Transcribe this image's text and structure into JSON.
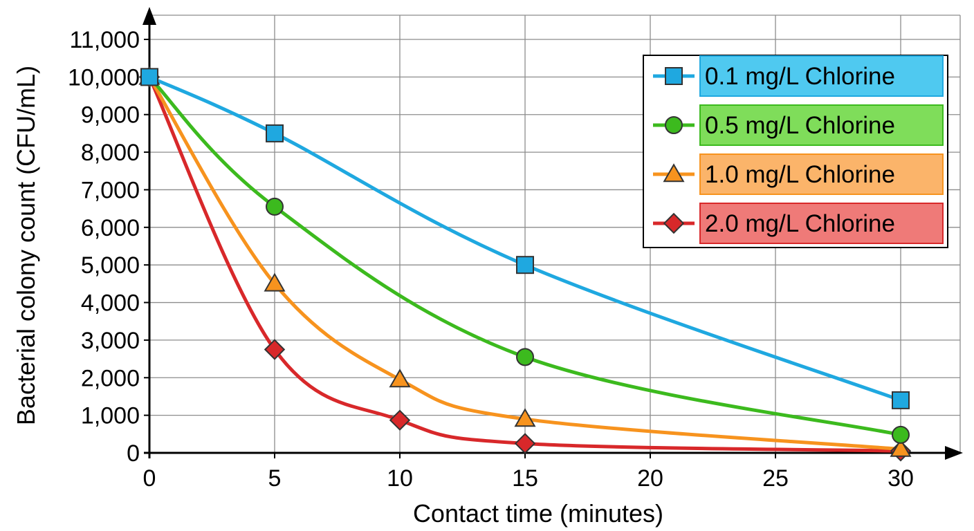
{
  "chart_data": {
    "type": "line",
    "title": "",
    "xlabel": "Contact time (minutes)",
    "ylabel": "Bacterial colony count (CFU/mL)",
    "x_ticks": [
      "0",
      "5",
      "10",
      "15",
      "20",
      "25",
      "30"
    ],
    "y_ticks": [
      "0",
      "1,000",
      "2,000",
      "3,000",
      "4,000",
      "5,000",
      "6,000",
      "7,000",
      "8,000",
      "9,000",
      "10,000",
      "11,000"
    ],
    "xlim": [
      0,
      30
    ],
    "ylim": [
      0,
      11000
    ],
    "grid": true,
    "legend_position": "top-right",
    "series": [
      {
        "name": "0.1 mg/L Chlorine",
        "color": "#1fa8e0",
        "box_color": "#4fc9f0",
        "marker": "square",
        "x": [
          0,
          5,
          15,
          30
        ],
        "y": [
          10000,
          8500,
          5000,
          1400
        ]
      },
      {
        "name": "0.5 mg/L Chlorine",
        "color": "#3cba1e",
        "box_color": "#7fdd5a",
        "marker": "circle",
        "x": [
          0,
          5,
          15,
          30
        ],
        "y": [
          10000,
          6550,
          2550,
          480
        ]
      },
      {
        "name": "1.0 mg/L Chlorine",
        "color": "#f7931e",
        "box_color": "#fbb46a",
        "marker": "triangle",
        "x": [
          0,
          5,
          10,
          15,
          30
        ],
        "y": [
          10000,
          4500,
          1950,
          900,
          100
        ]
      },
      {
        "name": "2.0 mg/L Chlorine",
        "color": "#d8282a",
        "box_color": "#ef7a78",
        "marker": "diamond",
        "x": [
          0,
          5,
          10,
          15,
          30
        ],
        "y": [
          10000,
          2750,
          870,
          250,
          50
        ]
      }
    ]
  }
}
